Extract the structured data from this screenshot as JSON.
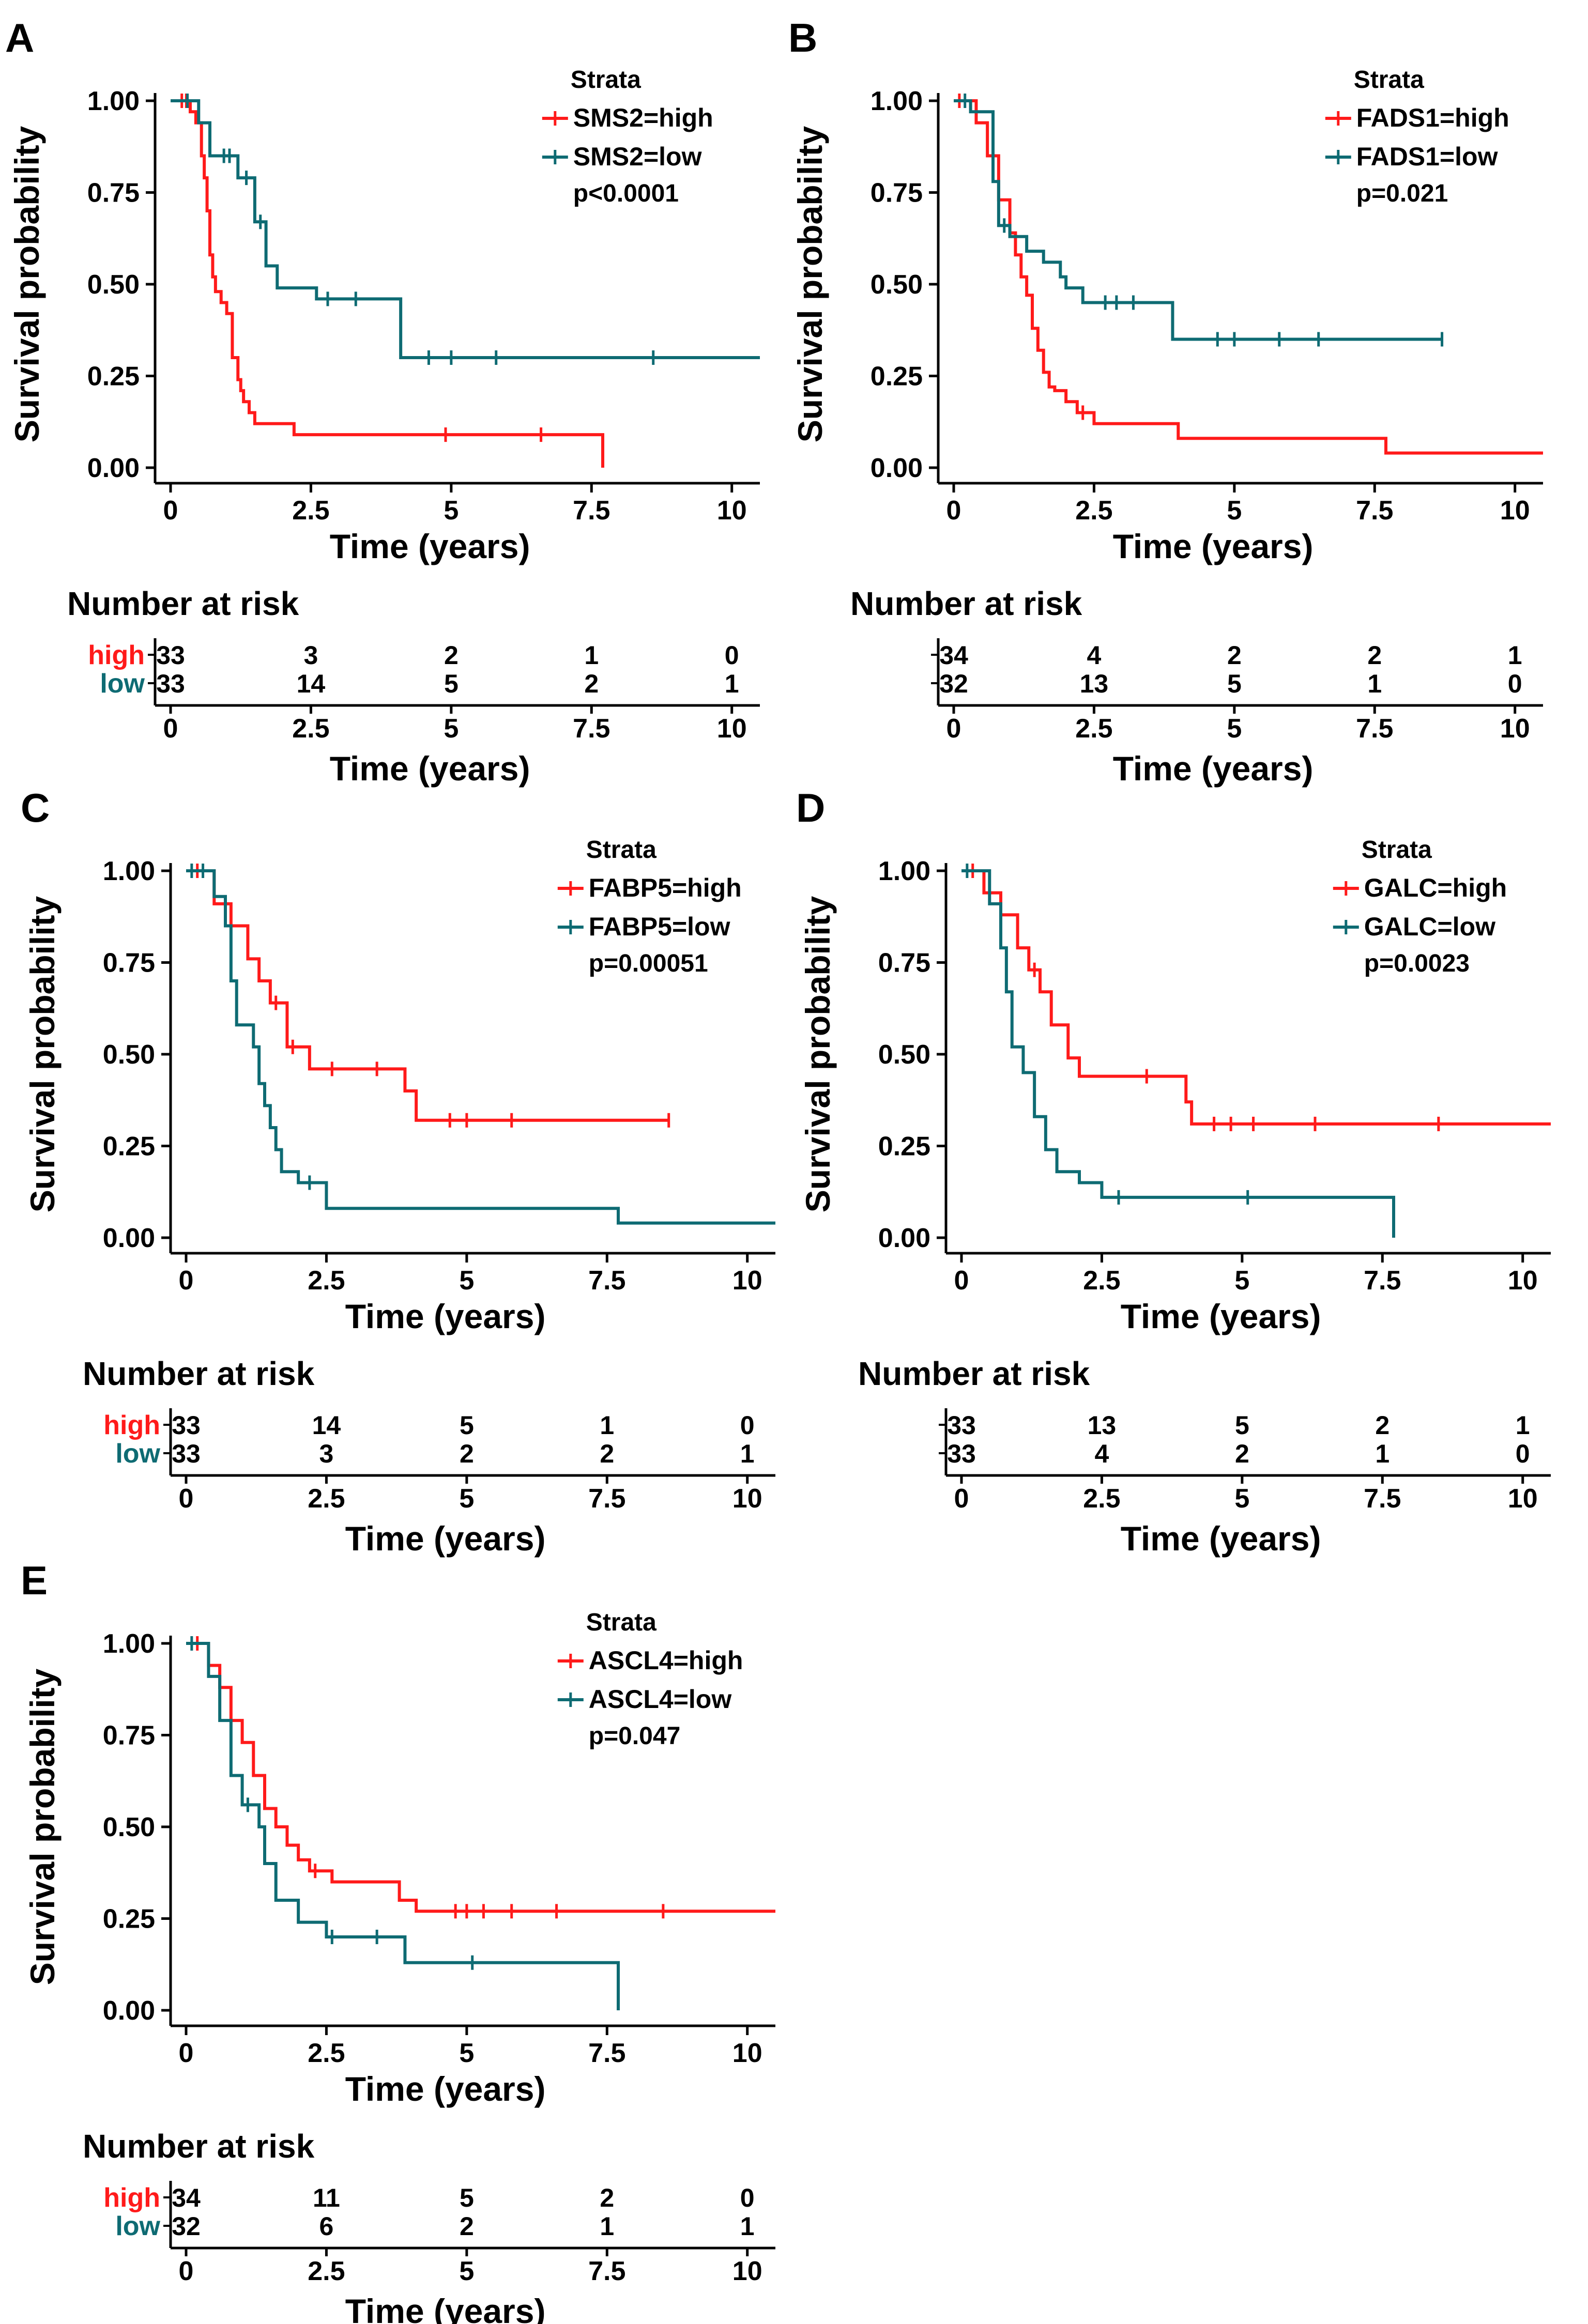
{
  "colors": {
    "high": "#ff1a1a",
    "low": "#0e6b73",
    "axis": "#000000"
  },
  "common": {
    "y_ticks": [
      "0.00",
      "0.25",
      "0.50",
      "0.75",
      "1.00"
    ],
    "x_ticks": [
      "0",
      "2.5",
      "5",
      "7.5",
      "10"
    ],
    "ylabel": "Survival probability",
    "xlabel": "Time (years)",
    "legend_title": "Strata",
    "risk_title": "Number at risk",
    "risk_row_high": "high",
    "risk_row_low": "low"
  },
  "chart_data": [
    {
      "panel": "A",
      "type": "line",
      "gene": "SMS2",
      "legend": [
        "SMS2=high",
        "SMS2=low"
      ],
      "pvalue": "p<0.0001",
      "xlim": [
        0,
        10.5
      ],
      "ylim": [
        0,
        1
      ],
      "show_row_names": true,
      "series": [
        {
          "name": "SMS2=high",
          "color_key": "high",
          "x": [
            0,
            0.35,
            0.45,
            0.55,
            0.6,
            0.65,
            0.7,
            0.75,
            0.8,
            0.9,
            1.0,
            1.1,
            1.2,
            1.25,
            1.3,
            1.4,
            1.5,
            2.2,
            7.7,
            7.7
          ],
          "y": [
            1.0,
            0.97,
            0.94,
            0.85,
            0.79,
            0.7,
            0.58,
            0.52,
            0.48,
            0.45,
            0.42,
            0.3,
            0.24,
            0.21,
            0.18,
            0.15,
            0.12,
            0.09,
            0.09,
            0.0
          ],
          "censor_x": [
            0.2,
            0.28,
            4.9,
            6.6
          ]
        },
        {
          "name": "SMS2=low",
          "color_key": "low",
          "x": [
            0,
            0.5,
            0.7,
            1.2,
            1.5,
            1.7,
            1.9,
            2.2,
            2.6,
            4.0,
            4.1,
            10.5
          ],
          "y": [
            1.0,
            0.94,
            0.85,
            0.79,
            0.67,
            0.55,
            0.49,
            0.49,
            0.46,
            0.46,
            0.3,
            0.3
          ],
          "censor_x": [
            0.3,
            0.95,
            1.05,
            1.35,
            1.6,
            2.8,
            3.3,
            4.6,
            5.0,
            5.8,
            8.6
          ]
        }
      ],
      "risk_table": {
        "high": [
          "33",
          "3",
          "2",
          "1",
          "0"
        ],
        "low": [
          "33",
          "14",
          "5",
          "2",
          "1"
        ]
      }
    },
    {
      "panel": "B",
      "type": "line",
      "gene": "FADS1",
      "legend": [
        "FADS1=high",
        "FADS1=low"
      ],
      "pvalue": "p=0.021",
      "xlim": [
        0,
        10.5
      ],
      "ylim": [
        0,
        1
      ],
      "show_row_names": false,
      "series": [
        {
          "name": "FADS1=high",
          "color_key": "high",
          "x": [
            0,
            0.4,
            0.6,
            0.8,
            1.0,
            1.1,
            1.2,
            1.3,
            1.4,
            1.5,
            1.6,
            1.7,
            1.8,
            2.0,
            2.2,
            2.5,
            4.0,
            7.7,
            10.5
          ],
          "y": [
            1.0,
            0.94,
            0.85,
            0.73,
            0.64,
            0.58,
            0.52,
            0.47,
            0.38,
            0.32,
            0.26,
            0.22,
            0.21,
            0.18,
            0.15,
            0.12,
            0.08,
            0.04,
            0.04
          ],
          "censor_x": [
            0.1,
            2.3
          ]
        },
        {
          "name": "FADS1=low",
          "color_key": "low",
          "x": [
            0,
            0.3,
            0.7,
            0.8,
            1.0,
            1.3,
            1.6,
            1.9,
            2.0,
            2.3,
            3.9,
            8.7
          ],
          "y": [
            1.0,
            0.97,
            0.78,
            0.66,
            0.63,
            0.59,
            0.56,
            0.52,
            0.49,
            0.45,
            0.35,
            0.35
          ],
          "censor_x": [
            0.2,
            0.9,
            2.7,
            2.9,
            3.2,
            4.7,
            5.0,
            5.8,
            6.5,
            8.7
          ]
        }
      ],
      "risk_table": {
        "high": [
          "34",
          "4",
          "2",
          "2",
          "1"
        ],
        "low": [
          "32",
          "13",
          "5",
          "1",
          "0"
        ]
      }
    },
    {
      "panel": "C",
      "type": "line",
      "gene": "FABP5",
      "legend": [
        "FABP5=high",
        "FABP5=low"
      ],
      "pvalue": "p=0.00051",
      "xlim": [
        0,
        10.5
      ],
      "ylim": [
        0,
        1
      ],
      "show_row_names": true,
      "series": [
        {
          "name": "FABP5=high",
          "color_key": "high",
          "x": [
            0,
            0.5,
            0.8,
            1.1,
            1.3,
            1.5,
            1.8,
            2.2,
            3.9,
            4.1,
            8.6
          ],
          "y": [
            1.0,
            0.91,
            0.85,
            0.76,
            0.7,
            0.64,
            0.52,
            0.46,
            0.4,
            0.32,
            0.32
          ],
          "censor_x": [
            0.2,
            1.6,
            1.9,
            2.6,
            3.4,
            4.7,
            5.0,
            5.8,
            8.6
          ]
        },
        {
          "name": "FABP5=low",
          "color_key": "low",
          "x": [
            0,
            0.5,
            0.7,
            0.8,
            0.9,
            1.2,
            1.3,
            1.4,
            1.5,
            1.6,
            1.7,
            2.0,
            2.5,
            7.7,
            10.5
          ],
          "y": [
            1.0,
            0.93,
            0.85,
            0.7,
            0.58,
            0.52,
            0.42,
            0.36,
            0.3,
            0.24,
            0.18,
            0.15,
            0.08,
            0.04,
            0.04
          ],
          "censor_x": [
            0.1,
            0.3,
            2.2
          ]
        }
      ],
      "risk_table": {
        "high": [
          "33",
          "14",
          "5",
          "1",
          "0"
        ],
        "low": [
          "33",
          "3",
          "2",
          "2",
          "1"
        ]
      }
    },
    {
      "panel": "D",
      "type": "line",
      "gene": "GALC",
      "legend": [
        "GALC=high",
        "GALC=low"
      ],
      "pvalue": "p=0.0023",
      "xlim": [
        0,
        10.5
      ],
      "ylim": [
        0,
        1
      ],
      "show_row_names": false,
      "series": [
        {
          "name": "GALC=high",
          "color_key": "high",
          "x": [
            0,
            0.4,
            0.7,
            1.0,
            1.2,
            1.4,
            1.6,
            1.9,
            2.1,
            4.0,
            4.1,
            10.5
          ],
          "y": [
            1.0,
            0.94,
            0.88,
            0.79,
            0.73,
            0.67,
            0.58,
            0.49,
            0.44,
            0.37,
            0.31,
            0.31
          ],
          "censor_x": [
            0.2,
            0.5,
            1.3,
            3.3,
            4.5,
            4.8,
            5.2,
            6.3,
            8.5
          ]
        },
        {
          "name": "GALC=low",
          "color_key": "low",
          "x": [
            0,
            0.5,
            0.7,
            0.8,
            0.9,
            1.1,
            1.3,
            1.5,
            1.7,
            2.1,
            2.5,
            7.7,
            7.7
          ],
          "y": [
            1.0,
            0.91,
            0.79,
            0.67,
            0.52,
            0.45,
            0.33,
            0.24,
            0.18,
            0.15,
            0.11,
            0.11,
            0.0
          ],
          "censor_x": [
            0.1,
            2.8,
            5.1
          ]
        }
      ],
      "risk_table": {
        "high": [
          "33",
          "13",
          "5",
          "2",
          "1"
        ],
        "low": [
          "33",
          "4",
          "2",
          "1",
          "0"
        ]
      }
    },
    {
      "panel": "E",
      "type": "line",
      "gene": "ASCL4",
      "legend": [
        "ASCL4=high",
        "ASCL4=low"
      ],
      "pvalue": "p=0.047",
      "xlim": [
        0,
        10.5
      ],
      "ylim": [
        0,
        1
      ],
      "show_row_names": true,
      "series": [
        {
          "name": "ASCL4=high",
          "color_key": "high",
          "x": [
            0,
            0.4,
            0.6,
            0.8,
            1.0,
            1.2,
            1.4,
            1.6,
            1.8,
            2.0,
            2.2,
            2.6,
            3.8,
            4.1,
            10.5
          ],
          "y": [
            1.0,
            0.94,
            0.88,
            0.79,
            0.73,
            0.64,
            0.55,
            0.5,
            0.45,
            0.41,
            0.38,
            0.35,
            0.3,
            0.27,
            0.27
          ],
          "censor_x": [
            0.2,
            2.3,
            4.8,
            5.0,
            5.3,
            5.8,
            6.6,
            8.5
          ]
        },
        {
          "name": "ASCL4=low",
          "color_key": "low",
          "x": [
            0,
            0.4,
            0.6,
            0.8,
            1.0,
            1.3,
            1.4,
            1.6,
            2.0,
            2.5,
            3.9,
            7.7,
            7.7
          ],
          "y": [
            1.0,
            0.91,
            0.79,
            0.64,
            0.56,
            0.5,
            0.4,
            0.3,
            0.24,
            0.2,
            0.13,
            0.13,
            0.0
          ],
          "censor_x": [
            0.1,
            1.1,
            2.6,
            3.4,
            5.1
          ]
        }
      ],
      "risk_table": {
        "high": [
          "34",
          "11",
          "5",
          "2",
          "0"
        ],
        "low": [
          "32",
          "6",
          "2",
          "1",
          "1"
        ]
      }
    }
  ]
}
